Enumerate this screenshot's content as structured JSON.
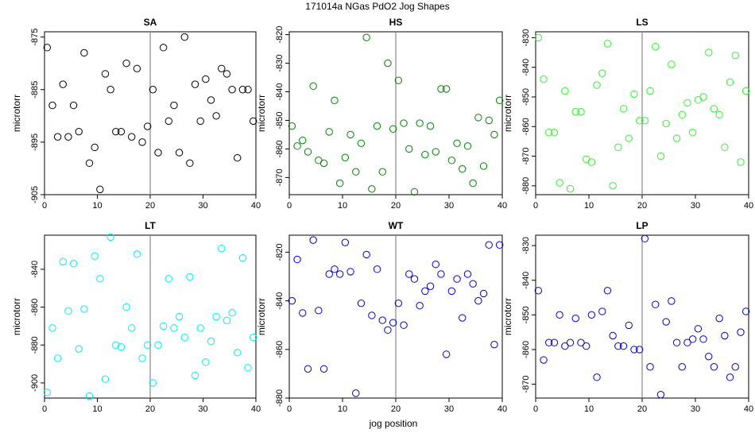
{
  "figure": {
    "title": "171014a   NGas PdO2 Jog Shapes",
    "xlabel": "jog position"
  },
  "chart_data": [
    {
      "type": "scatter",
      "title": "SA",
      "ylabel": "microtorr",
      "color": "#000000",
      "xlim": [
        0,
        40
      ],
      "ylim": [
        -905,
        -874
      ],
      "xticks": [
        0,
        10,
        20,
        30,
        40
      ],
      "yticks": [
        -905,
        -895,
        -885,
        -875
      ],
      "vline": 20,
      "x": [
        0.5,
        1.5,
        2.5,
        3.5,
        4.5,
        5.5,
        6.5,
        7.5,
        8.5,
        9.5,
        10.5,
        11.5,
        12.5,
        13.5,
        14.5,
        15.5,
        16.5,
        17.5,
        18.5,
        19.5,
        20.5,
        21.5,
        22.5,
        23.5,
        24.5,
        25.5,
        26.5,
        27.5,
        28.5,
        29.5,
        30.5,
        31.5,
        32.5,
        33.5,
        34.5,
        35.5,
        36.5,
        37.5,
        38.5,
        39.5
      ],
      "y": [
        -877,
        -888,
        -894,
        -884,
        -894,
        -888,
        -893,
        -878,
        -899,
        -896,
        -904,
        -882,
        -885,
        -893,
        -893,
        -880,
        -894,
        -881,
        -895,
        -892,
        -885,
        -897,
        -877,
        -891,
        -888,
        -897,
        -875,
        -899,
        -884,
        -891,
        -883,
        -887,
        -890,
        -881,
        -882,
        -885,
        -898,
        -885,
        -885,
        -891
      ]
    },
    {
      "type": "scatter",
      "title": "HS",
      "ylabel": "microtorr",
      "color": "#008000",
      "xlim": [
        0,
        40
      ],
      "ylim": [
        -876,
        -819
      ],
      "xticks": [
        0,
        10,
        20,
        30,
        40
      ],
      "yticks": [
        -870,
        -860,
        -850,
        -840,
        -830,
        -820
      ],
      "vline": 20,
      "x": [
        0.5,
        1.5,
        2.5,
        3.5,
        4.5,
        5.5,
        6.5,
        7.5,
        8.5,
        9.5,
        10.5,
        11.5,
        12.5,
        13.5,
        14.5,
        15.5,
        16.5,
        17.5,
        18.5,
        19.5,
        20.5,
        21.5,
        22.5,
        23.5,
        24.5,
        25.5,
        26.5,
        27.5,
        28.5,
        29.5,
        30.5,
        31.5,
        32.5,
        33.5,
        34.5,
        35.5,
        36.5,
        37.5,
        38.5,
        39.5
      ],
      "y": [
        -852,
        -859,
        -857,
        -861,
        -838,
        -864,
        -865,
        -854,
        -843,
        -872,
        -863,
        -855,
        -868,
        -858,
        -821,
        -874,
        -852,
        -868,
        -830,
        -853,
        -836,
        -851,
        -860,
        -875,
        -851,
        -862,
        -852,
        -861,
        -839,
        -839,
        -864,
        -858,
        -867,
        -859,
        -872,
        -849,
        -866,
        -850,
        -855,
        -843
      ]
    },
    {
      "type": "scatter",
      "title": "LS",
      "ylabel": "microtorr",
      "color": "#33ee33",
      "xlim": [
        0,
        40
      ],
      "ylim": [
        -883,
        -828
      ],
      "xticks": [
        0,
        10,
        20,
        30,
        40
      ],
      "yticks": [
        -880,
        -870,
        -860,
        -850,
        -840,
        -830
      ],
      "vline": 20,
      "x": [
        0.5,
        1.5,
        2.5,
        3.5,
        4.5,
        5.5,
        6.5,
        7.5,
        8.5,
        9.5,
        10.5,
        11.5,
        12.5,
        13.5,
        14.5,
        15.5,
        16.5,
        17.5,
        18.5,
        19.5,
        20.5,
        21.5,
        22.5,
        23.5,
        24.5,
        25.5,
        26.5,
        27.5,
        28.5,
        29.5,
        30.5,
        31.5,
        32.5,
        33.5,
        34.5,
        35.5,
        36.5,
        37.5,
        38.5,
        39.5
      ],
      "y": [
        -830,
        -844,
        -862,
        -862,
        -879,
        -848,
        -881,
        -855,
        -855,
        -871,
        -872,
        -846,
        -842,
        -832,
        -880,
        -867,
        -854,
        -864,
        -849,
        -858,
        -858,
        -848,
        -833,
        -870,
        -859,
        -839,
        -864,
        -856,
        -852,
        -862,
        -851,
        -850,
        -835,
        -854,
        -856,
        -867,
        -845,
        -836,
        -872,
        -848
      ]
    },
    {
      "type": "scatter",
      "title": "LT",
      "ylabel": "microtorr",
      "color": "#00eeee",
      "xlim": [
        0,
        40
      ],
      "ylim": [
        -908,
        -822
      ],
      "xticks": [
        0,
        10,
        20,
        30,
        40
      ],
      "yticks": [
        -900,
        -880,
        -860,
        -840
      ],
      "vline": 20,
      "x": [
        0.5,
        1.5,
        2.5,
        3.5,
        4.5,
        5.5,
        6.5,
        7.5,
        8.5,
        9.5,
        10.5,
        11.5,
        12.5,
        13.5,
        14.5,
        15.5,
        16.5,
        17.5,
        18.5,
        19.5,
        20.5,
        21.5,
        22.5,
        23.5,
        24.5,
        25.5,
        26.5,
        27.5,
        28.5,
        29.5,
        30.5,
        31.5,
        32.5,
        33.5,
        34.5,
        35.5,
        36.5,
        37.5,
        38.5,
        39.5
      ],
      "y": [
        -905,
        -871,
        -887,
        -836,
        -862,
        -837,
        -882,
        -861,
        -907,
        -833,
        -845,
        -898,
        -823,
        -880,
        -881,
        -860,
        -871,
        -832,
        -887,
        -880,
        -900,
        -880,
        -870,
        -845,
        -871,
        -865,
        -876,
        -844,
        -896,
        -871,
        -889,
        -878,
        -865,
        -829,
        -867,
        -863,
        -884,
        -834,
        -892,
        -876
      ]
    },
    {
      "type": "scatter",
      "title": "WT",
      "ylabel": "microtorr",
      "color": "#0000cc",
      "xlim": [
        0,
        40
      ],
      "ylim": [
        -880,
        -813
      ],
      "xticks": [
        0,
        10,
        20,
        30,
        40
      ],
      "yticks": [
        -880,
        -860,
        -840,
        -820
      ],
      "vline": 20,
      "x": [
        0.5,
        1.5,
        2.5,
        3.5,
        4.5,
        5.5,
        6.5,
        7.5,
        8.5,
        9.5,
        10.5,
        11.5,
        12.5,
        13.5,
        14.5,
        15.5,
        16.5,
        17.5,
        18.5,
        19.5,
        20.5,
        21.5,
        22.5,
        23.5,
        24.5,
        25.5,
        26.5,
        27.5,
        28.5,
        29.5,
        30.5,
        31.5,
        32.5,
        33.5,
        34.5,
        35.5,
        36.5,
        37.5,
        38.5,
        39.5
      ],
      "y": [
        -840,
        -823,
        -845,
        -868,
        -815,
        -844,
        -868,
        -829,
        -827,
        -829,
        -816,
        -828,
        -878,
        -841,
        -821,
        -846,
        -827,
        -848,
        -852,
        -849,
        -841,
        -850,
        -829,
        -831,
        -842,
        -836,
        -834,
        -825,
        -829,
        -862,
        -836,
        -831,
        -847,
        -829,
        -833,
        -840,
        -837,
        -817,
        -858,
        -817
      ]
    },
    {
      "type": "scatter",
      "title": "LP",
      "ylabel": "microtorr",
      "color": "#0000cc",
      "xlim": [
        0,
        40
      ],
      "ylim": [
        -874,
        -827
      ],
      "xticks": [
        0,
        10,
        20,
        30,
        40
      ],
      "yticks": [
        -870,
        -860,
        -850,
        -840,
        -830
      ],
      "vline": 20,
      "x": [
        0.5,
        1.5,
        2.5,
        3.5,
        4.5,
        5.5,
        6.5,
        7.5,
        8.5,
        9.5,
        10.5,
        11.5,
        12.5,
        13.5,
        14.5,
        15.5,
        16.5,
        17.5,
        18.5,
        19.5,
        20.5,
        21.5,
        22.5,
        23.5,
        24.5,
        25.5,
        26.5,
        27.5,
        28.5,
        29.5,
        30.5,
        31.5,
        32.5,
        33.5,
        34.5,
        35.5,
        36.5,
        37.5,
        38.5,
        39.5
      ],
      "y": [
        -843,
        -863,
        -858,
        -858,
        -850,
        -859,
        -858,
        -851,
        -858,
        -859,
        -850,
        -868,
        -849,
        -843,
        -856,
        -859,
        -859,
        -853,
        -860,
        -860,
        -828,
        -865,
        -847,
        -873,
        -852,
        -846,
        -858,
        -865,
        -858,
        -857,
        -854,
        -857,
        -862,
        -865,
        -851,
        -856,
        -868,
        -865,
        -855,
        -849
      ]
    }
  ]
}
